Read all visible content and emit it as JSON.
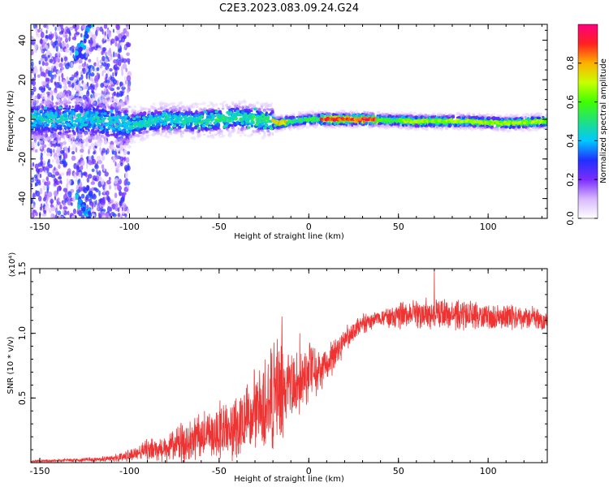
{
  "title": "C2E3.2023.083.09.24.G24",
  "chart_data": [
    {
      "type": "heatmap",
      "xlabel": "Height of straight line (km)",
      "ylabel": "Frequency (Hz)",
      "xlim": [
        -155,
        133
      ],
      "ylim": [
        -50,
        48
      ],
      "xticks": [
        -150,
        -100,
        -50,
        0,
        50,
        100
      ],
      "yticks": [
        -40,
        -20,
        0,
        20,
        40
      ],
      "colorbar": {
        "label": "Normalized spectral amplitude",
        "range": [
          0.0,
          1.0
        ],
        "ticks": [
          "0.0",
          "0.2",
          "0.4",
          "0.6",
          "0.8"
        ],
        "colormap": [
          "#ffffff",
          "#d9b8ff",
          "#7b2cff",
          "#2030ff",
          "#00c8ff",
          "#20e080",
          "#40ff00",
          "#c8ff00",
          "#ffb000",
          "#ff2020",
          "#ff0080"
        ]
      },
      "ridge": {
        "description_free": true,
        "points": [
          [
            -150,
            0
          ],
          [
            -120,
            0
          ],
          [
            -100,
            -3
          ],
          [
            -80,
            0
          ],
          [
            -60,
            -1
          ],
          [
            -40,
            1
          ],
          [
            -20,
            -1
          ],
          [
            -18,
            -2
          ],
          [
            0,
            0
          ],
          [
            10,
            0
          ],
          [
            30,
            0
          ],
          [
            60,
            -1
          ],
          [
            90,
            -1
          ],
          [
            110,
            -2
          ],
          [
            133,
            -1
          ]
        ]
      },
      "high_amplitude_segments": [
        [
          -20,
          -12,
          0.8
        ],
        [
          7,
          38,
          0.95
        ],
        [
          50,
          133,
          0.7
        ]
      ],
      "diagonal_streak": [
        [
          -130,
          30
        ],
        [
          -122,
          48
        ]
      ],
      "diagonal_streak_lower": [
        [
          -130,
          -38
        ],
        [
          -122,
          -50
        ]
      ]
    },
    {
      "type": "line",
      "xlabel": "Height of straight line (km)",
      "ylabel": "SNR (10 * v/v)",
      "yscale_label": "(x10⁴)",
      "xlim": [
        -155,
        133
      ],
      "ylim": [
        0.0,
        1.5
      ],
      "xticks": [
        -150,
        -100,
        -50,
        0,
        50,
        100
      ],
      "yticks": [
        "0.5",
        "1.0",
        "1.5"
      ],
      "series": [
        {
          "color": "#ee3333",
          "x": [
            -155,
            -130,
            -110,
            -100,
            -90,
            -80,
            -70,
            -60,
            -50,
            -40,
            -30,
            -20,
            -15,
            -10,
            -5,
            0,
            5,
            10,
            15,
            20,
            25,
            30,
            35,
            40,
            50,
            60,
            70,
            80,
            90,
            100,
            110,
            120,
            133
          ],
          "y": [
            0.01,
            0.02,
            0.03,
            0.06,
            0.1,
            0.12,
            0.15,
            0.2,
            0.25,
            0.3,
            0.38,
            0.45,
            0.55,
            0.6,
            0.65,
            0.7,
            0.72,
            0.75,
            0.85,
            0.95,
            1.02,
            1.07,
            1.1,
            1.12,
            1.13,
            1.15,
            1.15,
            1.15,
            1.14,
            1.13,
            1.12,
            1.12,
            1.1
          ],
          "noise_amplitude": [
            0.01,
            0.01,
            0.02,
            0.04,
            0.07,
            0.1,
            0.12,
            0.15,
            0.18,
            0.22,
            0.28,
            0.35,
            0.35,
            0.25,
            0.2,
            0.18,
            0.15,
            0.12,
            0.1,
            0.08,
            0.07,
            0.06,
            0.06,
            0.06,
            0.08,
            0.1,
            0.1,
            0.1,
            0.1,
            0.09,
            0.08,
            0.08,
            0.07
          ],
          "peaks": [
            [
              -15,
              1.13
            ],
            [
              70,
              1.5
            ],
            [
              -5,
              1.0
            ]
          ]
        }
      ]
    }
  ]
}
